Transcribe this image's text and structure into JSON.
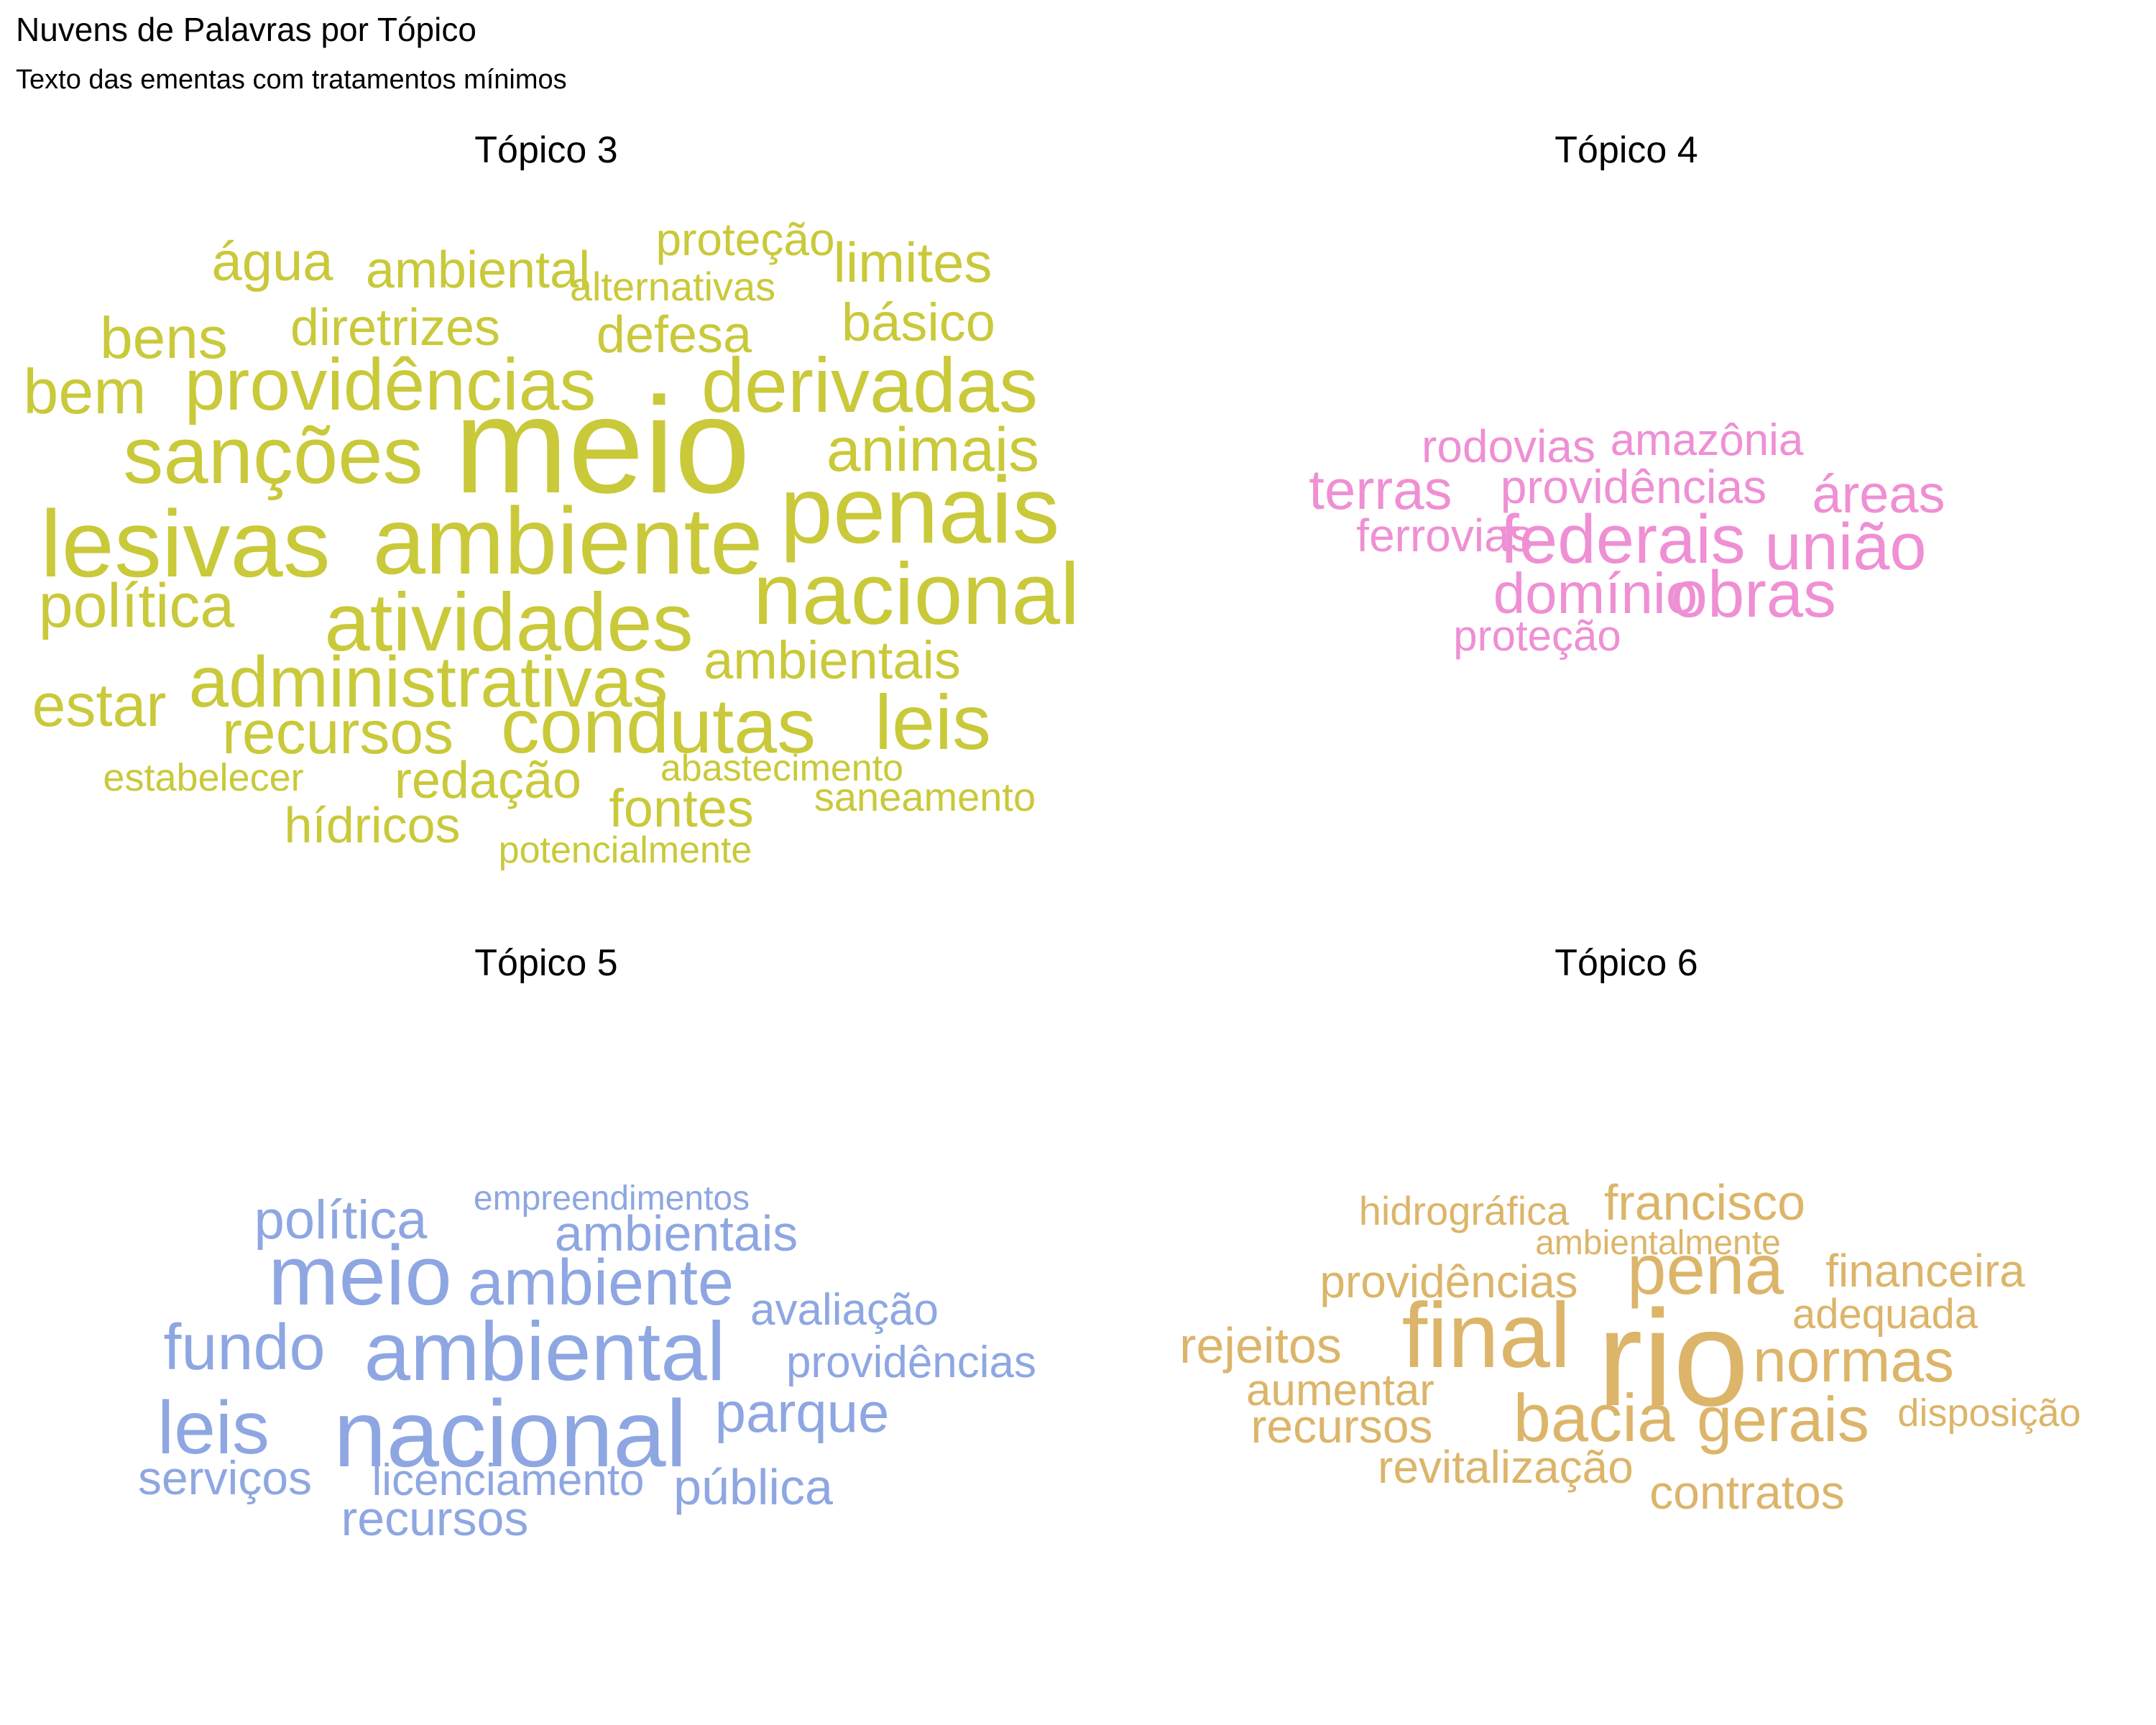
{
  "title": "Nuvens de Palavras por Tópico",
  "subtitle": "Texto das ementas com tratamentos mínimos",
  "chart_data": {
    "type": "wordcloud",
    "panels": [
      {
        "title": "Tópico 3",
        "color": "#c9c93a",
        "words": [
          {
            "text": "meio",
            "weight": 10
          },
          {
            "text": "lesivas",
            "weight": 7.4
          },
          {
            "text": "ambiente",
            "weight": 7.4
          },
          {
            "text": "penais",
            "weight": 7.4
          },
          {
            "text": "sanções",
            "weight": 6.8
          },
          {
            "text": "nacional",
            "weight": 7
          },
          {
            "text": "atividades",
            "weight": 6.8
          },
          {
            "text": "derivadas",
            "weight": 6.3
          },
          {
            "text": "condutas",
            "weight": 6.3
          },
          {
            "text": "leis",
            "weight": 6.3
          },
          {
            "text": "providências",
            "weight": 5.9
          },
          {
            "text": "administrativas",
            "weight": 5.9
          },
          {
            "text": "animais",
            "weight": 5.2
          },
          {
            "text": "bem",
            "weight": 5.2
          },
          {
            "text": "política",
            "weight": 5.1
          },
          {
            "text": "estar",
            "weight": 5.0
          },
          {
            "text": "recursos",
            "weight": 4.9
          },
          {
            "text": "ambientais",
            "weight": 4.7
          },
          {
            "text": "bens",
            "weight": 4.7
          },
          {
            "text": "limites",
            "weight": 4.4
          },
          {
            "text": "água",
            "weight": 4.4
          },
          {
            "text": "básico",
            "weight": 4.3
          },
          {
            "text": "diretrizes",
            "weight": 4.2
          },
          {
            "text": "ambiental",
            "weight": 4.2
          },
          {
            "text": "defesa",
            "weight": 4.1
          },
          {
            "text": "redação",
            "weight": 4.2
          },
          {
            "text": "fontes",
            "weight": 4.3
          },
          {
            "text": "hídricos",
            "weight": 4.1
          },
          {
            "text": "proteção",
            "weight": 3.8
          },
          {
            "text": "alternativas",
            "weight": 3.4
          },
          {
            "text": "saneamento",
            "weight": 3.4
          },
          {
            "text": "estabelecer",
            "weight": 3.3
          },
          {
            "text": "abastecimento",
            "weight": 3.2
          },
          {
            "text": "potencialmente",
            "weight": 3.1
          }
        ]
      },
      {
        "title": "Tópico 4",
        "color": "#ef8fd4",
        "words": [
          {
            "text": "federais",
            "weight": 5.6
          },
          {
            "text": "união",
            "weight": 5.5
          },
          {
            "text": "obras",
            "weight": 5.5
          },
          {
            "text": "domínio",
            "weight": 5.0
          },
          {
            "text": "terras",
            "weight": 4.8
          },
          {
            "text": "áreas",
            "weight": 4.6
          },
          {
            "text": "providências",
            "weight": 4.2
          },
          {
            "text": "rodovias",
            "weight": 4.0
          },
          {
            "text": "amazônia",
            "weight": 3.9
          },
          {
            "text": "ferrovias",
            "weight": 4.0
          },
          {
            "text": "proteção",
            "weight": 3.9
          }
        ]
      },
      {
        "title": "Tópico 5",
        "color": "#8ea7e2",
        "words": [
          {
            "text": "nacional",
            "weight": 7.6
          },
          {
            "text": "meio",
            "weight": 7.2
          },
          {
            "text": "ambiental",
            "weight": 7.2
          },
          {
            "text": "ambiente",
            "weight": 5.6
          },
          {
            "text": "fundo",
            "weight": 5.6
          },
          {
            "text": "leis",
            "weight": 6.2
          },
          {
            "text": "parque",
            "weight": 5.0
          },
          {
            "text": "política",
            "weight": 4.6
          },
          {
            "text": "ambientais",
            "weight": 4.4
          },
          {
            "text": "avaliação",
            "weight": 4.1
          },
          {
            "text": "providências",
            "weight": 4.1
          },
          {
            "text": "pública",
            "weight": 4.4
          },
          {
            "text": "serviços",
            "weight": 4.3
          },
          {
            "text": "licenciamento",
            "weight": 4.0
          },
          {
            "text": "recursos",
            "weight": 4.3
          },
          {
            "text": "empreendimentos",
            "weight": 3.4
          }
        ]
      },
      {
        "title": "Tópico 6",
        "color": "#dcb56a",
        "words": [
          {
            "text": "rio",
            "weight": 10
          },
          {
            "text": "final",
            "weight": 7.4
          },
          {
            "text": "pena",
            "weight": 6.1
          },
          {
            "text": "bacia",
            "weight": 5.8
          },
          {
            "text": "gerais",
            "weight": 5.6
          },
          {
            "text": "normas",
            "weight": 5.4
          },
          {
            "text": "francisco",
            "weight": 4.6
          },
          {
            "text": "rejeitos",
            "weight": 4.6
          },
          {
            "text": "recursos",
            "weight": 4.4
          },
          {
            "text": "aumentar",
            "weight": 4.3
          },
          {
            "text": "financeira",
            "weight": 4.3
          },
          {
            "text": "providências",
            "weight": 4.3
          },
          {
            "text": "revitalização",
            "weight": 4.2
          },
          {
            "text": "contratos",
            "weight": 4.4
          },
          {
            "text": "adequada",
            "weight": 4.0
          },
          {
            "text": "hidrográfica",
            "weight": 3.9
          },
          {
            "text": "disposição",
            "weight": 3.8
          },
          {
            "text": "ambientalmente",
            "weight": 3.5
          }
        ]
      }
    ]
  }
}
